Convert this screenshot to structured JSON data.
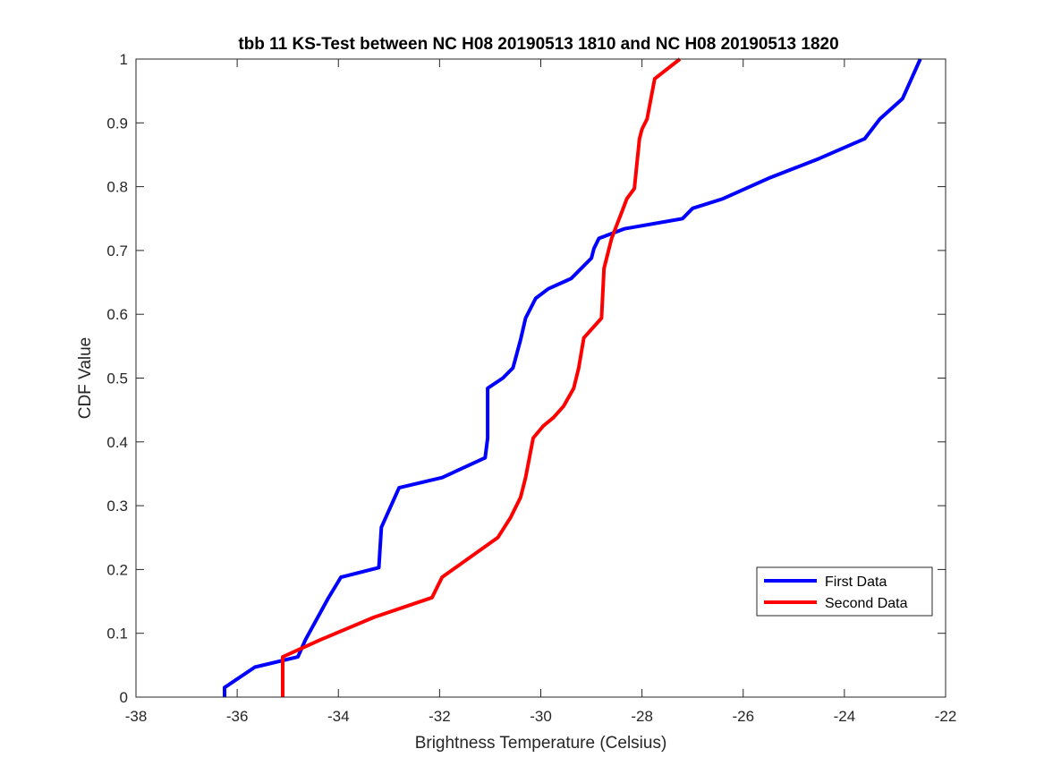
{
  "chart_data": {
    "type": "line",
    "title": "tbb 11 KS-Test between NC H08 20190513 1810 and NC H08 20190513 1820",
    "xlabel": "Brightness Temperature (Celsius)",
    "ylabel": "CDF Value",
    "xlim": [
      -38,
      -22
    ],
    "ylim": [
      0,
      1
    ],
    "xticks": [
      -38,
      -36,
      -34,
      -32,
      -30,
      -28,
      -26,
      -24,
      -22
    ],
    "xtick_labels": [
      "-38",
      "-36",
      "-34",
      "-32",
      "-30",
      "-28",
      "-26",
      "-24",
      "-22"
    ],
    "yticks": [
      0,
      0.1,
      0.2,
      0.3,
      0.4,
      0.5,
      0.6,
      0.7,
      0.8,
      0.9,
      1
    ],
    "ytick_labels": [
      "0",
      "0.1",
      "0.2",
      "0.3",
      "0.4",
      "0.5",
      "0.6",
      "0.7",
      "0.8",
      "0.9",
      "1"
    ],
    "grid": false,
    "legend_position": "bottom-right",
    "series": [
      {
        "name": "First Data",
        "color": "#0000ff",
        "x": [
          -36.25,
          -36.25,
          -35.65,
          -34.8,
          -34.65,
          -34.2,
          -33.95,
          -33.2,
          -33.15,
          -32.8,
          -31.95,
          -31.1,
          -31.05,
          -31.05,
          -30.75,
          -30.55,
          -30.4,
          -30.3,
          -30.1,
          -29.85,
          -29.4,
          -29.0,
          -28.95,
          -28.85,
          -28.35,
          -27.2,
          -27.0,
          -26.4,
          -25.5,
          -24.5,
          -23.6,
          -23.3,
          -22.85,
          -22.5
        ],
        "y": [
          0,
          0.015,
          0.047,
          0.063,
          0.09,
          0.155,
          0.188,
          0.203,
          0.266,
          0.328,
          0.344,
          0.375,
          0.406,
          0.484,
          0.5,
          0.516,
          0.56,
          0.594,
          0.625,
          0.64,
          0.656,
          0.688,
          0.703,
          0.719,
          0.734,
          0.75,
          0.766,
          0.781,
          0.813,
          0.844,
          0.875,
          0.906,
          0.938,
          1.0
        ]
      },
      {
        "name": "Second Data",
        "color": "#ff0000",
        "x": [
          -35.1,
          -35.1,
          -34.35,
          -34.2,
          -33.3,
          -32.15,
          -31.95,
          -30.85,
          -30.6,
          -30.5,
          -30.4,
          -30.3,
          -30.15,
          -29.95,
          -29.75,
          -29.55,
          -29.35,
          -29.25,
          -29.15,
          -28.8,
          -28.75,
          -28.6,
          -28.45,
          -28.4,
          -28.3,
          -28.15,
          -28.05,
          -28.0,
          -27.9,
          -27.75,
          -27.25
        ],
        "y": [
          0,
          0.063,
          0.09,
          0.095,
          0.125,
          0.156,
          0.188,
          0.25,
          0.281,
          0.297,
          0.313,
          0.344,
          0.406,
          0.425,
          0.438,
          0.456,
          0.484,
          0.516,
          0.563,
          0.594,
          0.672,
          0.719,
          0.75,
          0.76,
          0.781,
          0.797,
          0.875,
          0.89,
          0.906,
          0.969,
          1.0
        ]
      }
    ]
  }
}
